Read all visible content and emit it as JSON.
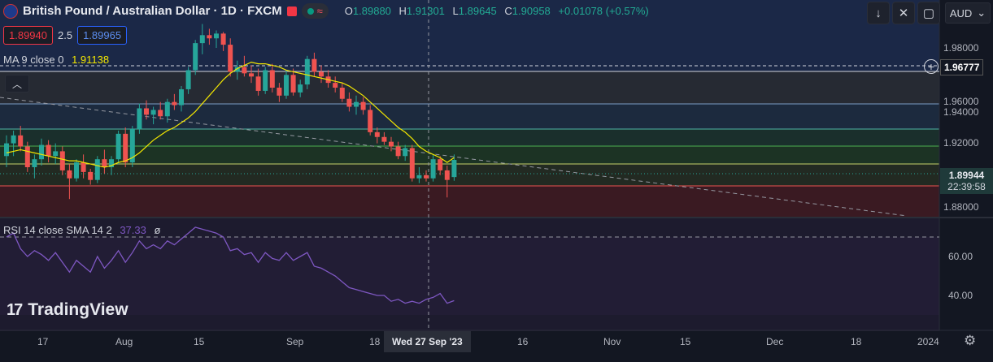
{
  "header": {
    "title": "British Pound / Australian Dollar · 1D · FXCM",
    "ohlc": {
      "o_label": "O",
      "o": "1.89880",
      "h_label": "H",
      "h": "1.91301",
      "l_label": "L",
      "l": "1.89645",
      "c_label": "C",
      "c": "1.90958",
      "change": "+0.01078 (+0.57%)"
    }
  },
  "trade": {
    "bid": "1.89940",
    "spread": "2.5",
    "ask": "1.89965"
  },
  "ma_legend": {
    "label": "MA 9 close 0",
    "value": "1.91138"
  },
  "rsi_legend": {
    "label": "RSI 14 close SMA 14 2",
    "value": "37.33",
    "extra": "ø"
  },
  "toolbar": {
    "currency": "AUD"
  },
  "price_axis": {
    "ticks": [
      "1.98000",
      "1.96000",
      "1.94000",
      "1.92000",
      "1.88000"
    ],
    "hline_price": "1.96777",
    "last_price": "1.89944",
    "countdown": "22:39:58"
  },
  "rsi_axis": {
    "ticks": [
      "60.00",
      "40.00"
    ]
  },
  "time_axis": {
    "labels": [
      "17",
      "Aug",
      "15",
      "Sep",
      "18",
      "16",
      "Nov",
      "15",
      "Dec",
      "18",
      "2024"
    ],
    "crosshair": "Wed 27 Sep '23"
  },
  "brand": {
    "name": "TradingView"
  },
  "colors": {
    "up": "#26a69a",
    "down": "#ef5350",
    "ma": "#f2e600",
    "rsi": "#7e57c2",
    "background": "#131722"
  },
  "chart_data": {
    "type": "candlestick",
    "title": "British Pound / Australian Dollar · 1D · FXCM",
    "x_range": [
      "Jul 2023",
      "Jan 2024"
    ],
    "ylim": [
      1.875,
      1.995
    ],
    "candles": [
      {
        "o": 1.912,
        "h": 1.925,
        "l": 1.905,
        "c": 1.92
      },
      {
        "o": 1.92,
        "h": 1.928,
        "l": 1.912,
        "c": 1.925
      },
      {
        "o": 1.925,
        "h": 1.931,
        "l": 1.915,
        "c": 1.918
      },
      {
        "o": 1.918,
        "h": 1.921,
        "l": 1.902,
        "c": 1.905
      },
      {
        "o": 1.905,
        "h": 1.913,
        "l": 1.898,
        "c": 1.91
      },
      {
        "o": 1.91,
        "h": 1.923,
        "l": 1.906,
        "c": 1.919
      },
      {
        "o": 1.919,
        "h": 1.922,
        "l": 1.908,
        "c": 1.912
      },
      {
        "o": 1.912,
        "h": 1.92,
        "l": 1.907,
        "c": 1.915
      },
      {
        "o": 1.915,
        "h": 1.918,
        "l": 1.9,
        "c": 1.903
      },
      {
        "o": 1.903,
        "h": 1.907,
        "l": 1.885,
        "c": 1.898
      },
      {
        "o": 1.898,
        "h": 1.91,
        "l": 1.896,
        "c": 1.908
      },
      {
        "o": 1.908,
        "h": 1.913,
        "l": 1.898,
        "c": 1.902
      },
      {
        "o": 1.902,
        "h": 1.904,
        "l": 1.894,
        "c": 1.897
      },
      {
        "o": 1.897,
        "h": 1.912,
        "l": 1.895,
        "c": 1.91
      },
      {
        "o": 1.91,
        "h": 1.916,
        "l": 1.901,
        "c": 1.905
      },
      {
        "o": 1.905,
        "h": 1.912,
        "l": 1.9,
        "c": 1.91
      },
      {
        "o": 1.91,
        "h": 1.928,
        "l": 1.907,
        "c": 1.926
      },
      {
        "o": 1.926,
        "h": 1.93,
        "l": 1.905,
        "c": 1.908
      },
      {
        "o": 1.908,
        "h": 1.931,
        "l": 1.905,
        "c": 1.929
      },
      {
        "o": 1.929,
        "h": 1.945,
        "l": 1.926,
        "c": 1.942
      },
      {
        "o": 1.942,
        "h": 1.947,
        "l": 1.935,
        "c": 1.938
      },
      {
        "o": 1.938,
        "h": 1.943,
        "l": 1.932,
        "c": 1.941
      },
      {
        "o": 1.941,
        "h": 1.946,
        "l": 1.935,
        "c": 1.937
      },
      {
        "o": 1.937,
        "h": 1.948,
        "l": 1.933,
        "c": 1.946
      },
      {
        "o": 1.946,
        "h": 1.951,
        "l": 1.941,
        "c": 1.944
      },
      {
        "o": 1.944,
        "h": 1.956,
        "l": 1.94,
        "c": 1.954
      },
      {
        "o": 1.954,
        "h": 1.968,
        "l": 1.951,
        "c": 1.966
      },
      {
        "o": 1.966,
        "h": 1.985,
        "l": 1.963,
        "c": 1.983
      },
      {
        "o": 1.983,
        "h": 1.995,
        "l": 1.976,
        "c": 1.988
      },
      {
        "o": 1.988,
        "h": 1.992,
        "l": 1.982,
        "c": 1.986
      },
      {
        "o": 1.986,
        "h": 1.991,
        "l": 1.98,
        "c": 1.989
      },
      {
        "o": 1.989,
        "h": 1.99,
        "l": 1.978,
        "c": 1.982
      },
      {
        "o": 1.982,
        "h": 1.986,
        "l": 1.962,
        "c": 1.965
      },
      {
        "o": 1.965,
        "h": 1.972,
        "l": 1.96,
        "c": 1.968
      },
      {
        "o": 1.968,
        "h": 1.975,
        "l": 1.962,
        "c": 1.964
      },
      {
        "o": 1.964,
        "h": 1.969,
        "l": 1.958,
        "c": 1.962
      },
      {
        "o": 1.962,
        "h": 1.967,
        "l": 1.95,
        "c": 1.953
      },
      {
        "o": 1.953,
        "h": 1.968,
        "l": 1.951,
        "c": 1.966
      },
      {
        "o": 1.966,
        "h": 1.97,
        "l": 1.952,
        "c": 1.955
      },
      {
        "o": 1.955,
        "h": 1.958,
        "l": 1.946,
        "c": 1.95
      },
      {
        "o": 1.95,
        "h": 1.966,
        "l": 1.948,
        "c": 1.963
      },
      {
        "o": 1.963,
        "h": 1.967,
        "l": 1.95,
        "c": 1.952
      },
      {
        "o": 1.952,
        "h": 1.96,
        "l": 1.949,
        "c": 1.957
      },
      {
        "o": 1.957,
        "h": 1.975,
        "l": 1.954,
        "c": 1.973
      },
      {
        "o": 1.973,
        "h": 1.977,
        "l": 1.962,
        "c": 1.965
      },
      {
        "o": 1.965,
        "h": 1.969,
        "l": 1.958,
        "c": 1.962
      },
      {
        "o": 1.962,
        "h": 1.966,
        "l": 1.955,
        "c": 1.958
      },
      {
        "o": 1.958,
        "h": 1.962,
        "l": 1.952,
        "c": 1.955
      },
      {
        "o": 1.955,
        "h": 1.958,
        "l": 1.946,
        "c": 1.948
      },
      {
        "o": 1.948,
        "h": 1.952,
        "l": 1.94,
        "c": 1.943
      },
      {
        "o": 1.943,
        "h": 1.95,
        "l": 1.938,
        "c": 1.946
      },
      {
        "o": 1.946,
        "h": 1.949,
        "l": 1.938,
        "c": 1.941
      },
      {
        "o": 1.941,
        "h": 1.944,
        "l": 1.925,
        "c": 1.927
      },
      {
        "o": 1.927,
        "h": 1.93,
        "l": 1.92,
        "c": 1.924
      },
      {
        "o": 1.924,
        "h": 1.927,
        "l": 1.919,
        "c": 1.921
      },
      {
        "o": 1.921,
        "h": 1.924,
        "l": 1.915,
        "c": 1.918
      },
      {
        "o": 1.918,
        "h": 1.921,
        "l": 1.91,
        "c": 1.912
      },
      {
        "o": 1.912,
        "h": 1.919,
        "l": 1.909,
        "c": 1.917
      },
      {
        "o": 1.917,
        "h": 1.919,
        "l": 1.896,
        "c": 1.898
      },
      {
        "o": 1.898,
        "h": 1.905,
        "l": 1.895,
        "c": 1.9
      },
      {
        "o": 1.9,
        "h": 1.903,
        "l": 1.896,
        "c": 1.898
      },
      {
        "o": 1.898,
        "h": 1.913,
        "l": 1.896,
        "c": 1.91
      },
      {
        "o": 1.91,
        "h": 1.912,
        "l": 1.9,
        "c": 1.903
      },
      {
        "o": 1.903,
        "h": 1.906,
        "l": 1.886,
        "c": 1.897
      },
      {
        "o": 1.8988,
        "h": 1.91301,
        "l": 1.89645,
        "c": 1.90958
      }
    ],
    "ma9": [
      1.914,
      1.915,
      1.916,
      1.915,
      1.914,
      1.913,
      1.912,
      1.911,
      1.91,
      1.909,
      1.909,
      1.908,
      1.907,
      1.906,
      1.905,
      1.906,
      1.908,
      1.909,
      1.911,
      1.914,
      1.918,
      1.922,
      1.925,
      1.928,
      1.93,
      1.933,
      1.936,
      1.94,
      1.945,
      1.95,
      1.955,
      1.96,
      1.964,
      1.967,
      1.969,
      1.971,
      1.97,
      1.97,
      1.969,
      1.968,
      1.966,
      1.965,
      1.964,
      1.963,
      1.962,
      1.961,
      1.96,
      1.959,
      1.958,
      1.956,
      1.953,
      1.95,
      1.946,
      1.942,
      1.938,
      1.934,
      1.93,
      1.927,
      1.923,
      1.918,
      1.915,
      1.913,
      1.911,
      1.908,
      1.911
    ],
    "rsi": [
      70,
      72,
      64,
      60,
      63,
      61,
      58,
      62,
      57,
      52,
      58,
      55,
      52,
      60,
      54,
      58,
      63,
      57,
      62,
      68,
      64,
      66,
      64,
      68,
      66,
      69,
      72,
      75,
      74,
      73,
      72,
      70,
      63,
      64,
      61,
      62,
      57,
      62,
      59,
      58,
      62,
      58,
      60,
      62,
      55,
      54,
      52,
      50,
      47,
      44,
      43,
      42,
      41,
      40,
      40,
      37,
      38,
      36,
      37,
      36,
      38,
      39,
      41,
      36,
      37.33
    ]
  }
}
